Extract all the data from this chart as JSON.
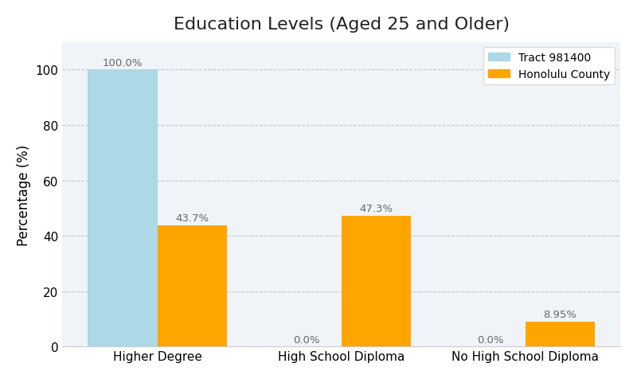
{
  "title": "Education Levels (Aged 25 and Older)",
  "categories": [
    "Higher Degree",
    "High School Diploma",
    "No High School Diploma"
  ],
  "tract_values": [
    100.0,
    0.0,
    0.0
  ],
  "county_values": [
    43.7,
    47.3,
    8.95
  ],
  "tract_label": "Tract 981400",
  "county_label": "Honolulu County",
  "tract_color": "#add8e6",
  "county_color": "#FFA500",
  "ylabel": "Percentage (%)",
  "ylim": [
    0,
    110
  ],
  "yticks": [
    0,
    20,
    40,
    60,
    80,
    100
  ],
  "figure_bg": "#ffffff",
  "axes_bg": "#f0f4f8",
  "bar_width": 0.38,
  "title_fontsize": 16,
  "axis_label_fontsize": 12,
  "tick_fontsize": 11,
  "annotation_fontsize": 9.5,
  "annotation_color": "#666666"
}
